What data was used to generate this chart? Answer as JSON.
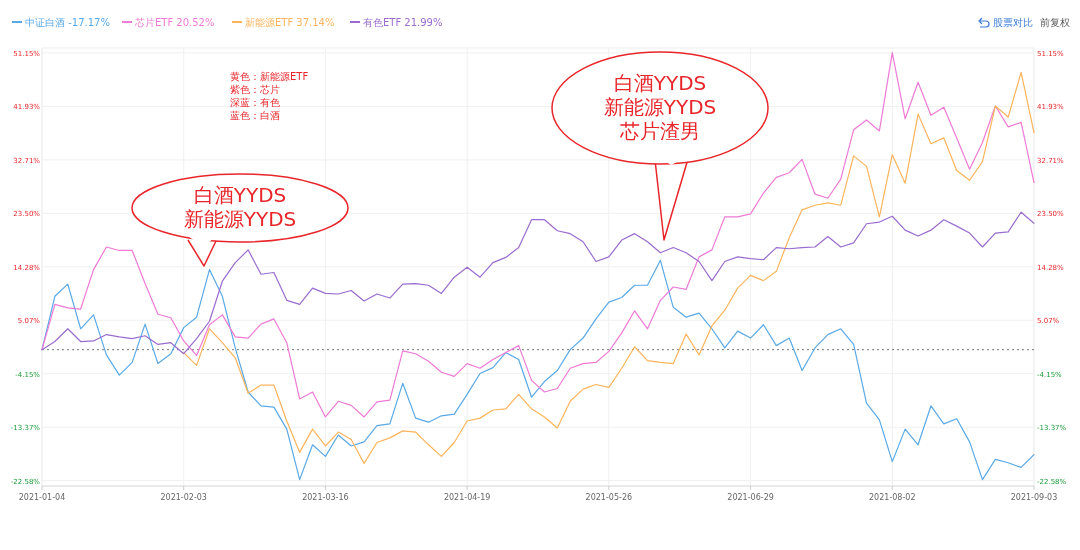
{
  "chart_data": {
    "type": "line",
    "categories": [
      "2021-01-04",
      null,
      null,
      null,
      null,
      null,
      null,
      null,
      null,
      null,
      null,
      "2021-02-03",
      null,
      null,
      null,
      null,
      null,
      null,
      null,
      null,
      null,
      null,
      "2021-03-16",
      null,
      null,
      null,
      null,
      null,
      null,
      null,
      null,
      null,
      null,
      "2021-04-19",
      null,
      null,
      null,
      null,
      null,
      null,
      null,
      null,
      null,
      null,
      "2021-05-26",
      null,
      null,
      null,
      null,
      null,
      null,
      null,
      null,
      null,
      null,
      "2021-06-29",
      null,
      null,
      null,
      null,
      null,
      null,
      null,
      null,
      null,
      null,
      "2021-08-02",
      null,
      null,
      null,
      null,
      null,
      null,
      null,
      null,
      null,
      null,
      "2021-09-03"
    ],
    "ylim": [
      -23.5,
      52
    ],
    "yticks": [
      {
        "value": -22.58,
        "label": "-22.58%"
      },
      {
        "value": -13.37,
        "label": "-13.37%"
      },
      {
        "value": -4.15,
        "label": "-4.15%"
      },
      {
        "value": 5.07,
        "label": "5.07%"
      },
      {
        "value": 14.28,
        "label": "14.28%"
      },
      {
        "value": 23.5,
        "label": "23.50%"
      },
      {
        "value": 32.71,
        "label": "32.71%"
      },
      {
        "value": 41.93,
        "label": "41.93%"
      },
      {
        "value": 51.15,
        "label": "51.15%"
      }
    ],
    "y2lim": [
      -23.5,
      52
    ],
    "y2ticks": [
      {
        "value": -22.58,
        "label": "-22.58%"
      },
      {
        "value": -13.37,
        "label": "-13.37%"
      },
      {
        "value": -4.15,
        "label": "-4.15%"
      },
      {
        "value": 5.07,
        "label": "5.07%"
      },
      {
        "value": 14.28,
        "label": "14.28%"
      },
      {
        "value": 23.5,
        "label": "23.50%"
      },
      {
        "value": 32.71,
        "label": "32.71%"
      },
      {
        "value": 41.93,
        "label": "41.93%"
      },
      {
        "value": 51.15,
        "label": "51.15%"
      }
    ],
    "grid": true,
    "legend": "top left",
    "marker": "none",
    "line_style": "solid",
    "ref_lines": [
      {
        "axis": "y",
        "value": 0,
        "color": "#777777",
        "line_style": "dotted"
      }
    ],
    "annotations": [
      "黄色：新能源ETF",
      "紫色：芯片",
      "深蓝：有色",
      "蓝色：白酒",
      "白酒YYDS",
      "新能源YYDS",
      "白酒YYDS",
      "新能源YYDS",
      "芯片渣男",
      "股票对比",
      "前复权"
    ],
    "series": [
      {
        "name": "中证白酒 -17.17%",
        "color": "#5aa9e6",
        "values": [
          0,
          9.2,
          11.3,
          3.6,
          6.0,
          -0.9,
          -4.4,
          -2.2,
          4.4,
          -2.4,
          -0.7,
          3.8,
          5.6,
          13.8,
          9.2,
          0.3,
          -7.3,
          -9.7,
          -9.9,
          -13.7,
          -22.4,
          -16.4,
          -18.4,
          -14.7,
          -16.6,
          -15.9,
          -13.1,
          -12.8,
          -5.8,
          -11.8,
          -12.5,
          -11.4,
          -11.1,
          -7.7,
          -4.1,
          -3.1,
          -0.5,
          -1.7,
          -8.2,
          -5.5,
          -3.6,
          0,
          2.0,
          5.3,
          8.2,
          9.0,
          11.1,
          11.1,
          15.4,
          7.3,
          5.6,
          6.3,
          3.6,
          0.3,
          3.2,
          2.0,
          4.3,
          0.7,
          2.0,
          -3.6,
          0.3,
          2.6,
          3.6,
          0.9,
          -9.2,
          -12.1,
          -19.3,
          -13.7,
          -16.4,
          -9.7,
          -12.8,
          -11.9,
          -15.9,
          -22.4,
          -18.9,
          -19.5,
          -20.3,
          -18.1
        ]
      },
      {
        "name": "芯片ETF 20.52%",
        "color": "#ee7ad6",
        "values": [
          0,
          7.8,
          7.2,
          7.0,
          13.8,
          17.7,
          17.1,
          17.1,
          11.4,
          6.1,
          5.5,
          1.5,
          -1.0,
          4.3,
          6.0,
          2.2,
          2.0,
          4.4,
          5.3,
          1.2,
          -8.5,
          -7.3,
          -11.6,
          -8.9,
          -9.6,
          -11.6,
          -9.0,
          -8.7,
          -0.2,
          -0.7,
          -2.0,
          -3.9,
          -4.6,
          -2.4,
          -3.2,
          -1.7,
          -0.5,
          0.7,
          -5.3,
          -7.3,
          -6.7,
          -3.2,
          -2.4,
          -2.2,
          -0.3,
          2.9,
          6.7,
          3.6,
          8.5,
          10.8,
          10.4,
          16.0,
          17.2,
          22.9,
          22.9,
          23.4,
          27.0,
          29.7,
          30.5,
          32.8,
          26.8,
          26.1,
          29.4,
          37.9,
          39.6,
          37.7,
          51.2,
          39.8,
          46.1,
          40.4,
          41.8,
          36.5,
          31.1,
          35.7,
          42.0,
          38.4,
          39.2,
          28.8
        ]
      },
      {
        "name": "新能源ETF 37.14%",
        "color": "#fbb45c",
        "values": [
          null,
          null,
          null,
          null,
          null,
          null,
          null,
          null,
          null,
          null,
          null,
          -0.5,
          -2.7,
          3.6,
          1.2,
          -1.4,
          -7.5,
          -6.1,
          -6.1,
          -12.3,
          -17.7,
          -13.7,
          -16.6,
          -14.2,
          -15.5,
          -19.6,
          -16.0,
          -15.2,
          -14.0,
          -14.2,
          -16.4,
          -18.4,
          -16.0,
          -12.3,
          -11.8,
          -10.4,
          -10.2,
          -7.7,
          -10.2,
          -11.6,
          -13.5,
          -8.9,
          -6.8,
          -6.0,
          -6.5,
          -3.2,
          0.5,
          -1.9,
          -2.2,
          -2.4,
          2.7,
          -0.9,
          4.1,
          6.8,
          10.6,
          12.8,
          11.9,
          13.5,
          19.3,
          24.1,
          24.9,
          25.3,
          24.9,
          33.4,
          31.6,
          22.9,
          33.6,
          28.7,
          40.6,
          35.5,
          36.5,
          30.9,
          29.2,
          32.4,
          42.0,
          40.1,
          47.8,
          37.4
        ]
      },
      {
        "name": "有色ETF 21.99%",
        "color": "#9a6ccf",
        "values": [
          0,
          1.4,
          3.6,
          1.4,
          1.5,
          2.6,
          2.2,
          1.9,
          2.4,
          0.9,
          1.2,
          -0.7,
          1.9,
          4.9,
          11.8,
          15.0,
          17.2,
          13.0,
          13.3,
          8.5,
          7.8,
          10.6,
          9.7,
          9.6,
          10.2,
          8.4,
          9.6,
          8.9,
          11.3,
          11.4,
          11.1,
          9.7,
          12.5,
          14.2,
          12.5,
          15.0,
          15.9,
          17.6,
          22.4,
          22.4,
          20.5,
          20.0,
          18.6,
          15.2,
          16.0,
          18.9,
          20.0,
          18.6,
          16.7,
          17.6,
          16.7,
          15.2,
          11.9,
          15.2,
          16.0,
          15.7,
          15.5,
          17.6,
          17.4,
          17.6,
          17.7,
          19.5,
          17.7,
          18.4,
          21.7,
          22.0,
          23.0,
          20.6,
          19.6,
          20.6,
          22.4,
          21.3,
          20.1,
          17.7,
          20.1,
          20.3,
          23.7,
          21.8
        ]
      }
    ]
  }
}
